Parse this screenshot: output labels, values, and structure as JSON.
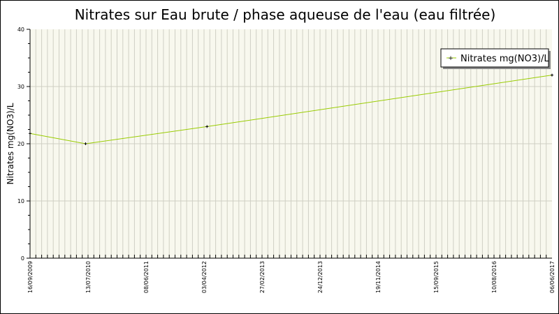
{
  "chart_data": {
    "type": "line",
    "title": "Nitrates sur Eau brute / phase aqueuse de l'eau (eau filtrée)",
    "xlabel": "",
    "ylabel": "Nitrates mg(NO3)/L",
    "ylim": [
      0,
      40
    ],
    "yticks": [
      "0",
      "10",
      "20",
      "30",
      "40"
    ],
    "xlim": [
      "2009-09-16",
      "2017-06-06"
    ],
    "xtick_labels": [
      "16/09/2009",
      "13/07/2010",
      "08/06/2011",
      "03/04/2012",
      "27/02/2013",
      "24/12/2013",
      "19/11/2014",
      "15/09/2015",
      "10/08/2016",
      "06/06/2017"
    ],
    "grid": true,
    "legend_position": "top-right",
    "series": [
      {
        "name": "Nitrates mg(NO3)/L",
        "color": "#99cc00",
        "points": [
          {
            "x": "2009-09-16",
            "y": 21.8
          },
          {
            "x": "2010-07-13",
            "y": 20
          },
          {
            "x": "2012-04-29",
            "y": 23
          },
          {
            "x": "2017-06-06",
            "y": 32
          }
        ]
      }
    ]
  }
}
